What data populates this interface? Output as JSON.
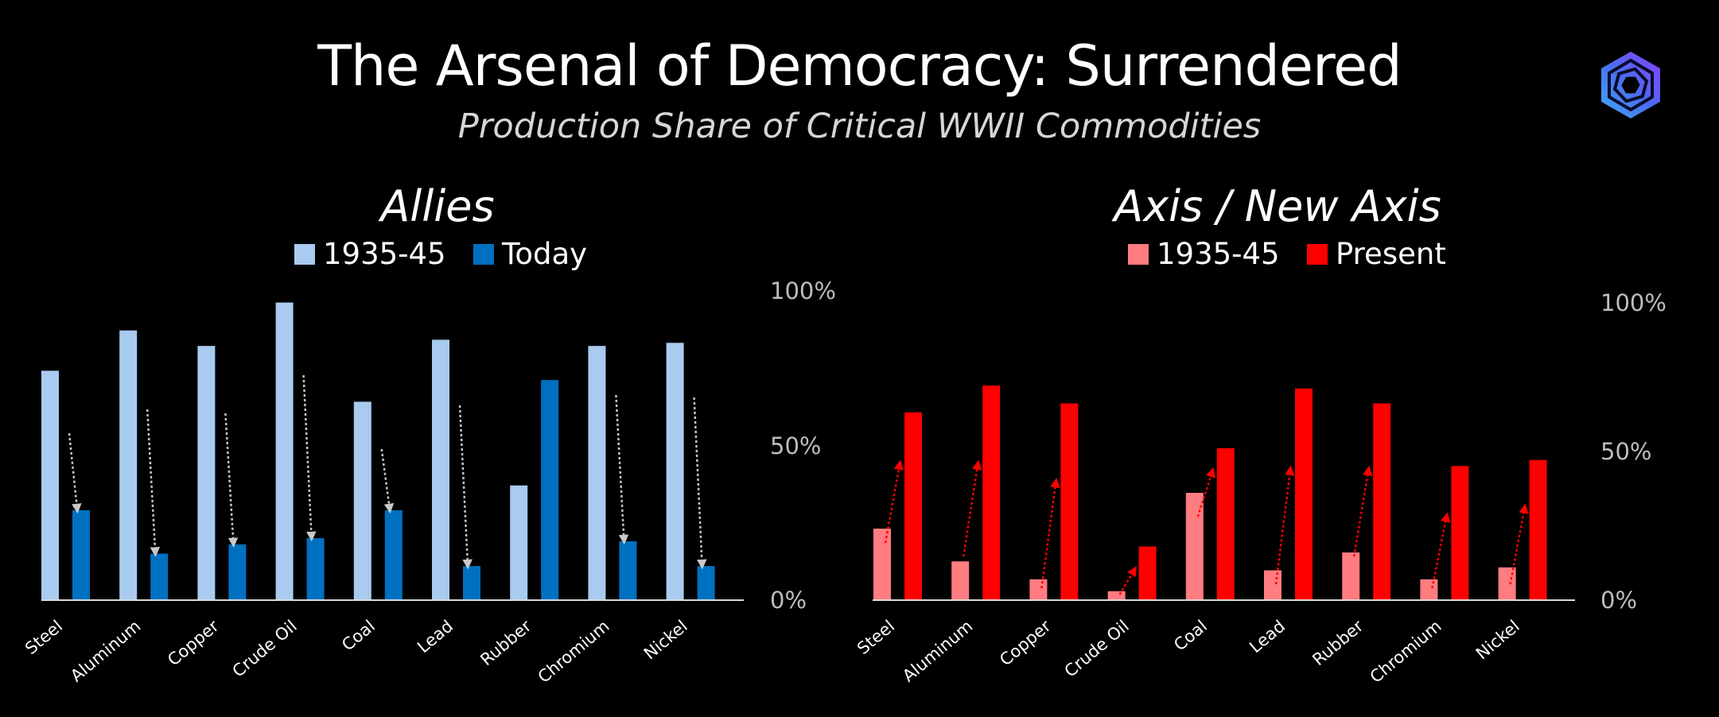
{
  "title": "The Arsenal of Democracy: Surrendered",
  "subtitle": "Production Share of Critical WWII Commodities",
  "logo": {
    "icon": "hexagon-vortex-logo",
    "colors": [
      "#3fa9f5",
      "#4b6cf0",
      "#8a3ffc"
    ]
  },
  "chart_data": [
    {
      "type": "bar",
      "title": "Allies",
      "categories": [
        "Steel",
        "Aluminum",
        "Copper",
        "Crude Oil",
        "Coal",
        "Lead",
        "Rubber",
        "Chromium",
        "Nickel"
      ],
      "series": [
        {
          "name": "1935-45",
          "color": "#a9cbf0",
          "values": [
            74,
            87,
            82,
            96,
            64,
            84,
            37,
            82,
            83
          ]
        },
        {
          "name": "Today",
          "color": "#0070c0",
          "values": [
            29,
            15,
            18,
            20,
            29,
            11,
            71,
            19,
            11
          ]
        }
      ],
      "arrows": {
        "color": "#c8c8c8",
        "direction": "down",
        "categories": [
          "Steel",
          "Aluminum",
          "Copper",
          "Crude Oil",
          "Coal",
          "Lead",
          "Chromium",
          "Nickel"
        ]
      },
      "yticks": [
        "100%",
        "50%",
        "0%"
      ],
      "ylim": [
        0,
        100
      ]
    },
    {
      "type": "bar",
      "title": "Axis / New Axis",
      "categories": [
        "Steel",
        "Aluminum",
        "Copper",
        "Crude Oil",
        "Coal",
        "Lead",
        "Rubber",
        "Chromium",
        "Nickel"
      ],
      "series": [
        {
          "name": "1935-45",
          "color": "#ff7c80",
          "values": [
            24,
            13,
            7,
            3,
            36,
            10,
            16,
            7,
            11
          ]
        },
        {
          "name": "Present",
          "color": "#ff0000",
          "values": [
            63,
            72,
            66,
            18,
            51,
            71,
            66,
            45,
            47
          ]
        }
      ],
      "arrows": {
        "color": "#ff0000",
        "direction": "up",
        "categories": [
          "Steel",
          "Aluminum",
          "Copper",
          "Crude Oil",
          "Coal",
          "Lead",
          "Rubber",
          "Chromium",
          "Nickel"
        ]
      },
      "yticks": [
        "100%",
        "50%",
        "0%"
      ],
      "ylim": [
        0,
        100
      ]
    }
  ]
}
